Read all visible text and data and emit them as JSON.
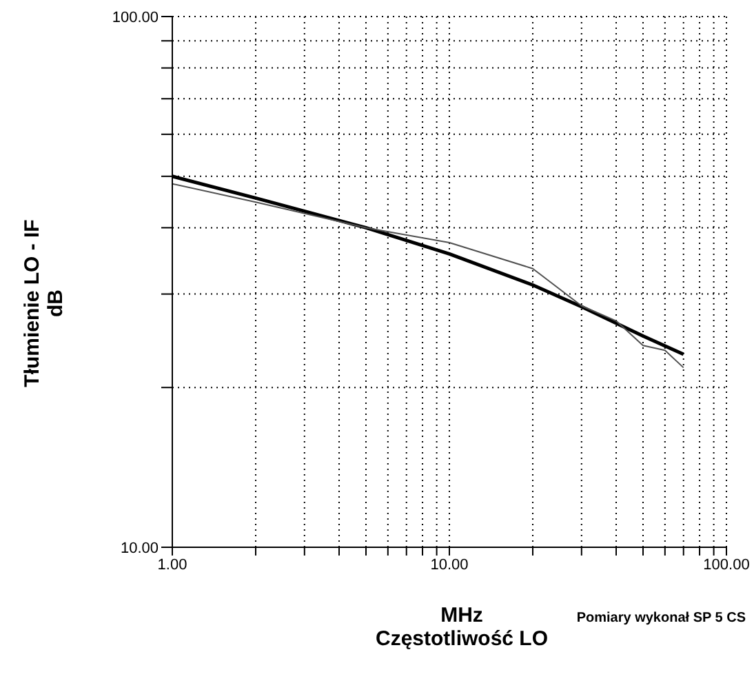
{
  "chart_data": {
    "type": "line",
    "xlabel": "MHz\nCzęstotliwość LO",
    "ylabel": "Tłumienie LO - IF\ndB",
    "annotations": [
      "Pomiary wykonał SP 5 CS"
    ],
    "log": "xy",
    "grid": true,
    "marker": "none",
    "line_style": "solid",
    "xlim": [
      1,
      100
    ],
    "ylim": [
      10,
      100
    ],
    "xticks": [
      {
        "value": 1,
        "label": "1.00"
      },
      {
        "value": 2,
        "label": null
      },
      {
        "value": 3,
        "label": null
      },
      {
        "value": 4,
        "label": null
      },
      {
        "value": 5,
        "label": null
      },
      {
        "value": 6,
        "label": null
      },
      {
        "value": 7,
        "label": null
      },
      {
        "value": 8,
        "label": null
      },
      {
        "value": 9,
        "label": null
      },
      {
        "value": 10,
        "label": "10.00"
      },
      {
        "value": 20,
        "label": null
      },
      {
        "value": 30,
        "label": null
      },
      {
        "value": 40,
        "label": null
      },
      {
        "value": 50,
        "label": null
      },
      {
        "value": 60,
        "label": null
      },
      {
        "value": 70,
        "label": null
      },
      {
        "value": 80,
        "label": null
      },
      {
        "value": 90,
        "label": null
      },
      {
        "value": 100,
        "label": "100.00"
      }
    ],
    "yticks": [
      {
        "value": 10,
        "label": "10.00"
      },
      {
        "value": 20,
        "label": null
      },
      {
        "value": 30,
        "label": null
      },
      {
        "value": 40,
        "label": null
      },
      {
        "value": 50,
        "label": null
      },
      {
        "value": 60,
        "label": null
      },
      {
        "value": 70,
        "label": null
      },
      {
        "value": 80,
        "label": null
      },
      {
        "value": 90,
        "label": null
      },
      {
        "value": 100,
        "label": "100.00"
      }
    ],
    "series": [
      {
        "color": "#000000",
        "x": [
          1,
          2,
          5,
          10,
          20,
          30,
          50,
          70
        ],
        "values": [
          50,
          45.5,
          40,
          35.7,
          31.2,
          28.4,
          25,
          23.1
        ]
      },
      {
        "color": "#505050",
        "x": [
          1,
          2,
          5,
          10,
          20,
          30,
          40,
          50,
          60,
          70
        ],
        "values": [
          48.4,
          44.7,
          40,
          37.5,
          33.5,
          28.5,
          26.7,
          24,
          23.5,
          21.8
        ]
      }
    ]
  }
}
